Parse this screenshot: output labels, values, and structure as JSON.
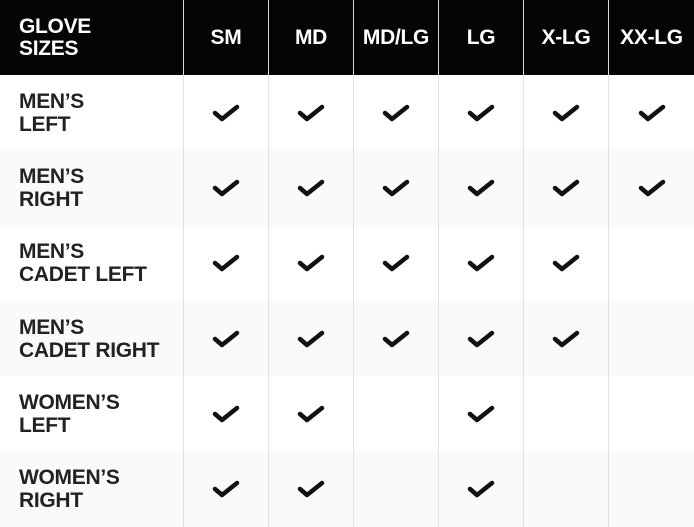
{
  "header": {
    "corner_label": "GLOVE\nSIZES",
    "sizes": [
      "SM",
      "MD",
      "MD/LG",
      "LG",
      "X-LG",
      "XX-LG"
    ]
  },
  "rows": [
    {
      "label": "MEN’S\nLEFT",
      "available": [
        true,
        true,
        true,
        true,
        true,
        true
      ]
    },
    {
      "label": "MEN’S\nRIGHT",
      "available": [
        true,
        true,
        true,
        true,
        true,
        true
      ]
    },
    {
      "label": "MEN’S\nCADET LEFT",
      "available": [
        true,
        true,
        true,
        true,
        true,
        false
      ]
    },
    {
      "label": "MEN’S\nCADET RIGHT",
      "available": [
        true,
        true,
        true,
        true,
        true,
        false
      ]
    },
    {
      "label": "WOMEN’S\nLEFT",
      "available": [
        true,
        true,
        false,
        true,
        false,
        false
      ]
    },
    {
      "label": "WOMEN’S\nRIGHT",
      "available": [
        true,
        true,
        false,
        true,
        false,
        false
      ]
    }
  ],
  "icons": {
    "available": "checkmark-icon"
  },
  "colors": {
    "header_bg": "#050507",
    "header_text": "#ffffff",
    "row_text": "#222222",
    "alt_row_bg": "#fafafa",
    "check": "#111111"
  }
}
